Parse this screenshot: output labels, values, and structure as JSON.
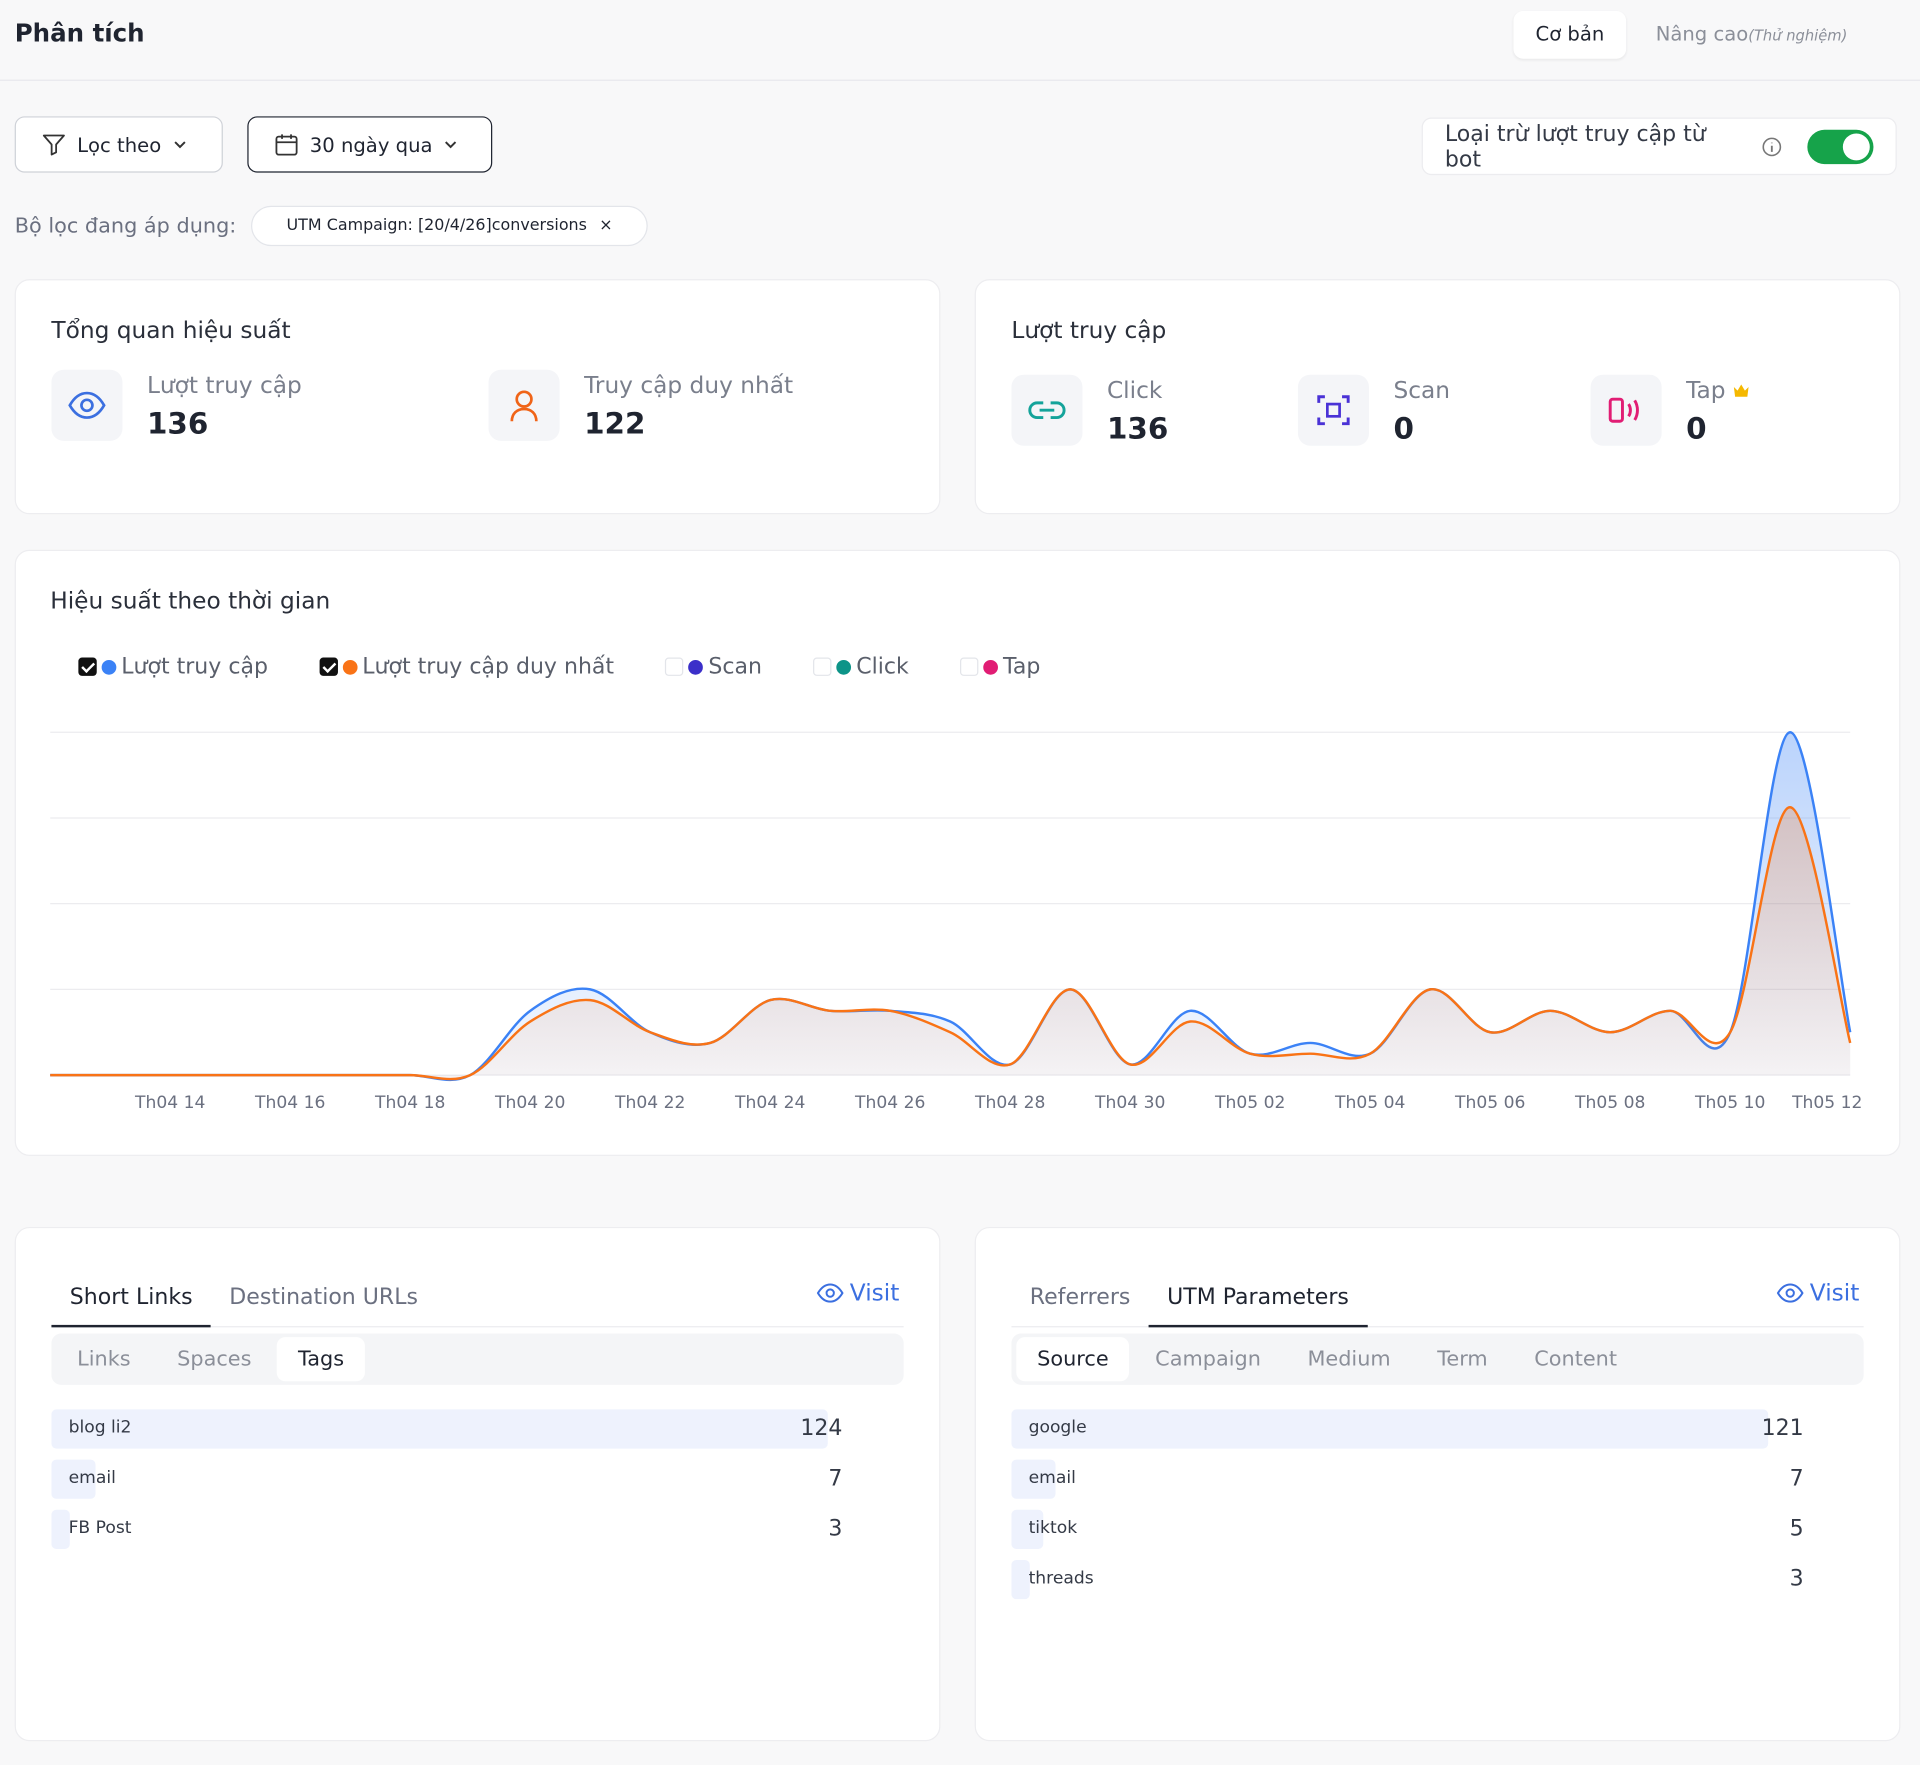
{
  "header": {
    "title": "Phân tích",
    "tabs": [
      {
        "label": "Cơ bản"
      },
      {
        "label": "Nâng cao",
        "note": "(Thử nghiệm)"
      }
    ],
    "active_tab": 0
  },
  "filters": {
    "filter_button": "Lọc theo",
    "date_button": "30 ngày qua",
    "bot_toggle": "Loại trừ lượt truy cập từ bot",
    "bot_toggle_on": true,
    "applied_label": "Bộ lọc đang áp dụng:",
    "applied_chip": "UTM Campaign: [20/4/26]conversions"
  },
  "overview": {
    "title": "Tổng quan hiệu suất",
    "stats": [
      {
        "label": "Lượt truy cập",
        "value": 136
      },
      {
        "label": "Truy cập duy nhất",
        "value": 122
      }
    ]
  },
  "visits": {
    "title": "Lượt truy cập",
    "stats": [
      {
        "label": "Click",
        "value": 136
      },
      {
        "label": "Scan",
        "value": 0
      },
      {
        "label": "Tap",
        "value": 0
      }
    ]
  },
  "chart_data": {
    "type": "line",
    "title": "Hiệu suất theo thời gian",
    "categories": [
      null,
      null,
      "Th04 14",
      null,
      "Th04 16",
      null,
      "Th04 18",
      null,
      "Th04 20",
      null,
      "Th04 22",
      null,
      "Th04 24",
      null,
      "Th04 26",
      null,
      "Th04 28",
      null,
      "Th04 30",
      null,
      "Th05 02",
      null,
      "Th05 04",
      null,
      "Th05 06",
      null,
      "Th05 08",
      null,
      "Th05 10",
      null,
      "Th05 12"
    ],
    "series": [
      {
        "name": "Lượt truy cập",
        "color": "#3b82f6",
        "checked": true,
        "values": [
          0,
          0,
          0,
          0,
          0,
          0,
          0,
          0,
          6,
          8,
          4,
          3,
          7,
          6,
          6,
          5,
          1,
          8,
          1,
          6,
          2,
          3,
          2,
          8,
          4,
          6,
          4,
          6,
          4,
          32,
          4
        ]
      },
      {
        "name": "Lượt truy cập duy nhất",
        "color": "#f97316",
        "checked": true,
        "values": [
          0,
          0,
          0,
          0,
          0,
          0,
          0,
          0,
          5,
          7,
          4,
          3,
          7,
          6,
          6,
          4,
          1,
          8,
          1,
          5,
          2,
          2,
          2,
          8,
          4,
          6,
          4,
          6,
          4,
          25,
          3
        ]
      },
      {
        "name": "Scan",
        "color": "#3b2fc9",
        "checked": false
      },
      {
        "name": "Click",
        "color": "#0d9488",
        "checked": false
      },
      {
        "name": "Tap",
        "color": "#e11d74",
        "checked": false
      }
    ],
    "ylim": [
      0,
      32
    ],
    "yticks": [
      0,
      8,
      16,
      24,
      32
    ],
    "grid": true,
    "area": true
  },
  "links_panel": {
    "tabs": [
      "Short Links",
      "Destination URLs"
    ],
    "active_tab": 0,
    "visit": "Visit",
    "subtabs": [
      "Links",
      "Spaces",
      "Tags"
    ],
    "active_subtab": 2,
    "rows": [
      {
        "label": "blog li2",
        "value": 124
      },
      {
        "label": "email",
        "value": 7
      },
      {
        "label": "FB Post",
        "value": 3
      }
    ]
  },
  "sources_panel": {
    "tabs": [
      "Referrers",
      "UTM Parameters"
    ],
    "active_tab": 1,
    "visit": "Visit",
    "subtabs": [
      "Source",
      "Campaign",
      "Medium",
      "Term",
      "Content"
    ],
    "active_subtab": 0,
    "rows": [
      {
        "label": "google",
        "value": 121
      },
      {
        "label": "email",
        "value": 7
      },
      {
        "label": "tiktok",
        "value": 5
      },
      {
        "label": "threads",
        "value": 3
      }
    ]
  }
}
